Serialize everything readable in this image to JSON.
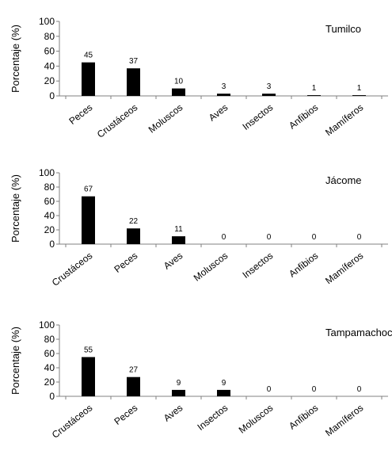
{
  "chart_data": [
    {
      "type": "bar",
      "title": "Tumilco",
      "ylabel": "Porcentaje (%)",
      "ylim": [
        0,
        100
      ],
      "yticks": [
        0,
        20,
        40,
        60,
        80,
        100
      ],
      "categories": [
        "Peces",
        "Crustáceos",
        "Moluscos",
        "Aves",
        "Insectos",
        "Anfibios",
        "Mamíferos"
      ],
      "values": [
        45,
        37,
        10,
        3,
        3,
        1,
        1
      ],
      "data_labels": [
        "45",
        "37",
        "10",
        "3",
        "3",
        "1",
        "1"
      ],
      "bar_color": "#000000"
    },
    {
      "type": "bar",
      "title": "Jácome",
      "ylabel": "Porcentaje (%)",
      "ylim": [
        0,
        100
      ],
      "yticks": [
        0,
        20,
        40,
        60,
        80,
        100
      ],
      "categories": [
        "Crustáceos",
        "Peces",
        "Aves",
        "Moluscos",
        "Insectos",
        "Anfibios",
        "Mamíferos"
      ],
      "values": [
        67,
        22,
        11,
        0,
        0,
        0,
        0
      ],
      "data_labels": [
        "67",
        "22",
        "11",
        "0",
        "0",
        "0",
        "0"
      ],
      "bar_color": "#000000"
    },
    {
      "type": "bar",
      "title": "Tampamachoco",
      "ylabel": "Porcentaje (%)",
      "ylim": [
        0,
        100
      ],
      "yticks": [
        0,
        20,
        40,
        60,
        80,
        100
      ],
      "categories": [
        "Crustáceos",
        "Peces",
        "Aves",
        "Insectos",
        "Moluscos",
        "Anfibios",
        "Mamíferos"
      ],
      "values": [
        55,
        27,
        9,
        9,
        0,
        0,
        0
      ],
      "data_labels": [
        "55",
        "27",
        "9",
        "9",
        "0",
        "0",
        "0"
      ],
      "bar_color": "#000000"
    }
  ]
}
